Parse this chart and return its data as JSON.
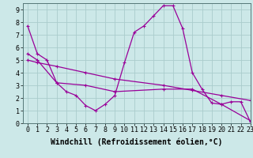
{
  "background_color": "#cce8e8",
  "grid_color": "#aacccc",
  "line_color": "#990099",
  "xlim": [
    -0.5,
    23
  ],
  "ylim": [
    0,
    9.5
  ],
  "xlabel": "Windchill (Refroidissement éolien,°C)",
  "xlabel_fontsize": 7,
  "xticks": [
    0,
    1,
    2,
    3,
    4,
    5,
    6,
    7,
    8,
    9,
    10,
    11,
    12,
    13,
    14,
    15,
    16,
    17,
    18,
    19,
    20,
    21,
    22,
    23
  ],
  "yticks": [
    0,
    1,
    2,
    3,
    4,
    5,
    6,
    7,
    8,
    9
  ],
  "tick_fontsize": 6,
  "series1_x": [
    0,
    1,
    2,
    3,
    4,
    5,
    6,
    7,
    8,
    9,
    10,
    11,
    12,
    13,
    14,
    15,
    16,
    17,
    18,
    19,
    20,
    21,
    22,
    23
  ],
  "series1_y": [
    7.7,
    5.5,
    5.0,
    3.2,
    2.5,
    2.2,
    1.4,
    1.0,
    1.5,
    2.2,
    4.8,
    7.2,
    7.7,
    8.5,
    9.3,
    9.3,
    7.5,
    4.0,
    2.7,
    1.6,
    1.5,
    1.7,
    1.7,
    0.1
  ],
  "series2_x": [
    0,
    1,
    3,
    6,
    9,
    14,
    17,
    20,
    23
  ],
  "series2_y": [
    5.5,
    5.0,
    3.2,
    3.0,
    2.5,
    2.7,
    2.7,
    1.5,
    0.2
  ],
  "series3_x": [
    0,
    1,
    3,
    6,
    9,
    14,
    17,
    20,
    23
  ],
  "series3_y": [
    5.0,
    4.8,
    4.5,
    4.0,
    3.5,
    3.0,
    2.6,
    2.2,
    1.8
  ]
}
